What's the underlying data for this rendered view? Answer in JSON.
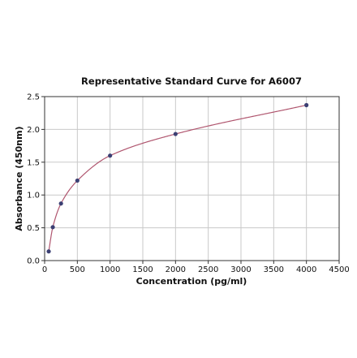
{
  "chart_data": {
    "type": "scatter",
    "title": "Representative Standard Curve for A6007",
    "xlabel": "Concentration (pg/ml)",
    "ylabel": "Absorbance (450nm)",
    "xlim": [
      0,
      4500
    ],
    "ylim": [
      0,
      2.5
    ],
    "x_ticks": [
      0,
      500,
      1000,
      1500,
      2000,
      2500,
      3000,
      3500,
      4000,
      4500
    ],
    "y_ticks": [
      0.0,
      0.5,
      1.0,
      1.5,
      2.0,
      2.5
    ],
    "x_tick_labels": [
      "0",
      "500",
      "1000",
      "1500",
      "2000",
      "2500",
      "3000",
      "3500",
      "4000",
      "4500"
    ],
    "y_tick_labels": [
      "0.0",
      "0.5",
      "1.0",
      "1.5",
      "2.0",
      "2.5"
    ],
    "grid": true,
    "series": [
      {
        "x": [
          62.5,
          125,
          250,
          500,
          1000,
          2000,
          4000
        ],
        "y": [
          0.14,
          0.51,
          0.87,
          1.22,
          1.6,
          1.93,
          2.37
        ],
        "marker_color": "#3b3f73",
        "fit_color": "#b0566f"
      }
    ]
  }
}
